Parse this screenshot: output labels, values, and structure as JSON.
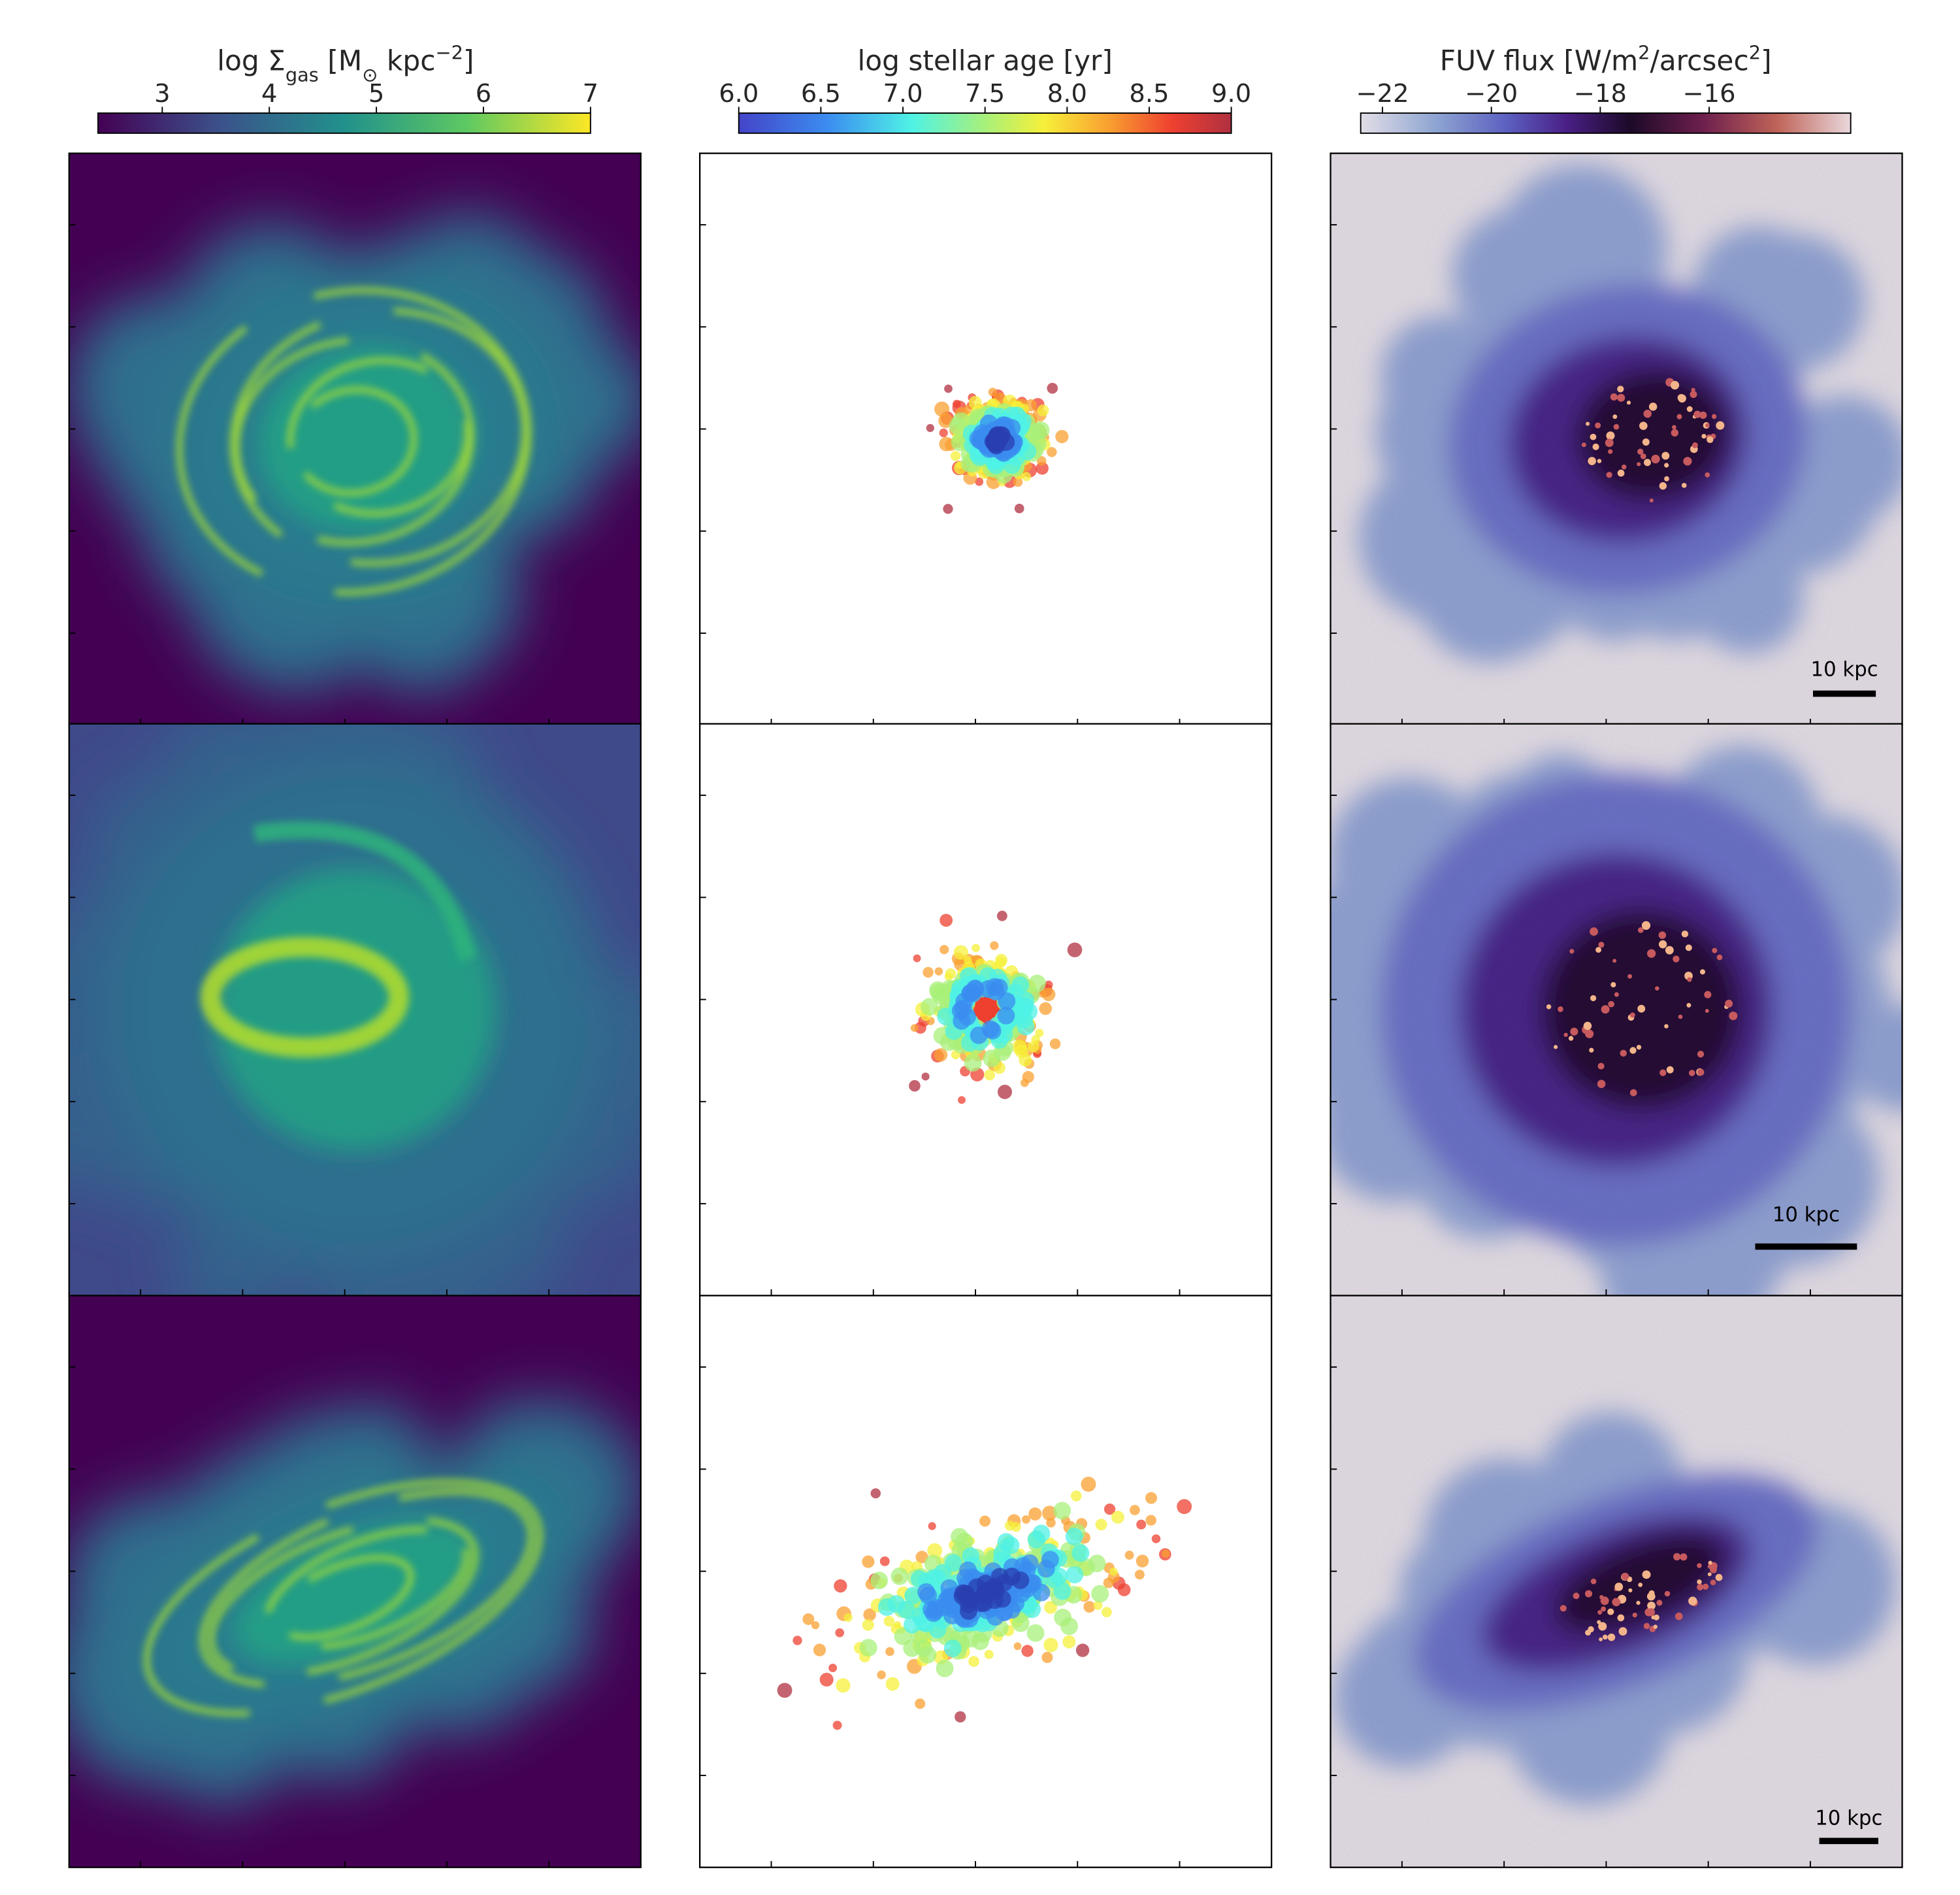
{
  "chart_data": [
    {
      "type": "colorbar",
      "colormap": "viridis",
      "label": [
        "log Σ",
        "gas",
        " [M",
        "⊙",
        " kpc",
        "−2",
        "]"
      ],
      "lim": [
        2.4,
        7
      ],
      "ticks": [
        3,
        4,
        5,
        6,
        7
      ]
    },
    {
      "type": "colorbar",
      "colormap": "spectral",
      "label": [
        "log stellar age [yr]"
      ],
      "lim": [
        6,
        9
      ],
      "ticks": [
        {
          "value": 6,
          "label": "6.0"
        },
        6.5,
        {
          "value": 7,
          "label": "7.0"
        },
        7.5,
        {
          "value": 8,
          "label": "8.0"
        },
        8.5,
        {
          "value": 9,
          "label": "9.0"
        }
      ]
    },
    {
      "type": "colorbar",
      "colormap": "fuv",
      "label": [
        "FUV flux [W/m",
        "2",
        "/arcsec",
        "2",
        "]"
      ],
      "lim": [
        -22.4,
        -13.4
      ],
      "ticks": [
        {
          "value": -22,
          "label": "−22"
        },
        {
          "value": -20,
          "label": "−20"
        },
        {
          "value": -18,
          "label": "−18"
        },
        {
          "value": -16,
          "label": "−16"
        }
      ]
    }
  ],
  "scale_bars": [
    "10 kpc",
    "10 kpc",
    "10 kpc"
  ]
}
